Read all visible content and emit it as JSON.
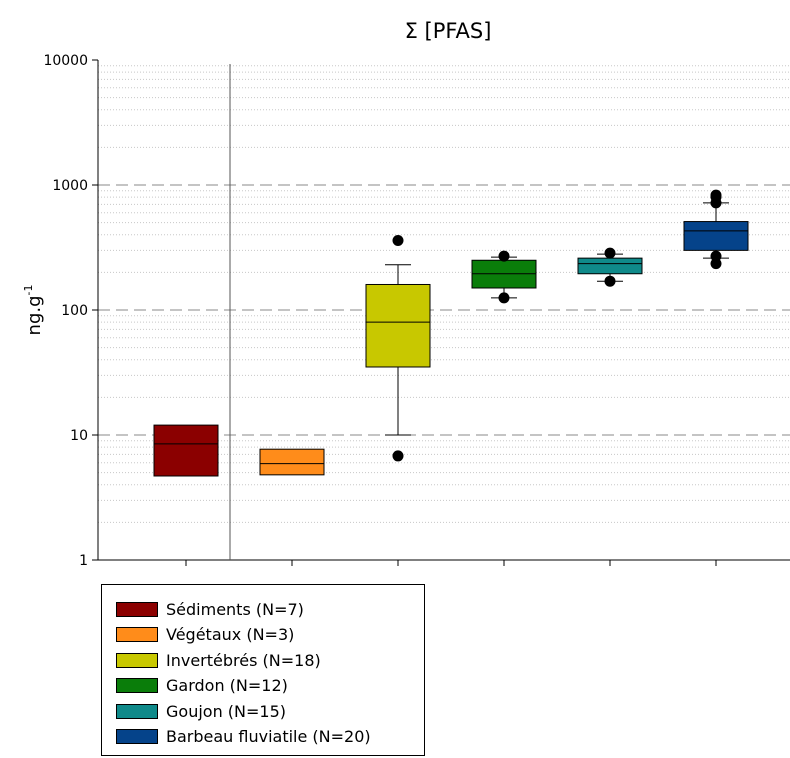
{
  "chart_data": {
    "type": "box",
    "title": "Σ [PFAS]",
    "ylabel": "ng.g",
    "ylabel_superscript": "-1",
    "yscale": "log",
    "ylim": [
      1,
      10000
    ],
    "yticks": [
      "1",
      "10",
      "100",
      "1000",
      "10000"
    ],
    "grid": {
      "major_dashed": true,
      "minor_dotted": true
    },
    "legend_position": "bottom-left",
    "series": [
      {
        "name": "Sédiments (N=7)",
        "color": "#8b0000",
        "q1": 4.7,
        "median": 8.5,
        "q3": 12,
        "whisker_low": null,
        "whisker_high": null,
        "outliers": []
      },
      {
        "name": "Végétaux (N=3)",
        "color": "#ff8c1a",
        "q1": 4.8,
        "median": 5.9,
        "q3": 7.7,
        "whisker_low": null,
        "whisker_high": null,
        "outliers": []
      },
      {
        "name": "Invertébrés (N=18)",
        "color": "#c8c800",
        "q1": 35,
        "median": 80,
        "q3": 160,
        "whisker_low": 10,
        "whisker_high": 230,
        "outliers": [
          6.8,
          360
        ]
      },
      {
        "name": "Gardon (N=12)",
        "color": "#0a7d0a",
        "q1": 150,
        "median": 195,
        "q3": 250,
        "whisker_low": 125,
        "whisker_high": 265,
        "outliers": [
          125,
          270
        ]
      },
      {
        "name": "Goujon (N=15)",
        "color": "#0f8a8a",
        "q1": 195,
        "median": 235,
        "q3": 260,
        "whisker_low": 170,
        "whisker_high": 280,
        "outliers": [
          170,
          285
        ]
      },
      {
        "name": "Barbeau fluviatile (N=20)",
        "color": "#05438a",
        "q1": 300,
        "median": 430,
        "q3": 510,
        "whisker_low": 260,
        "whisker_high": 720,
        "outliers": [
          235,
          270,
          720,
          800,
          830
        ]
      }
    ]
  }
}
